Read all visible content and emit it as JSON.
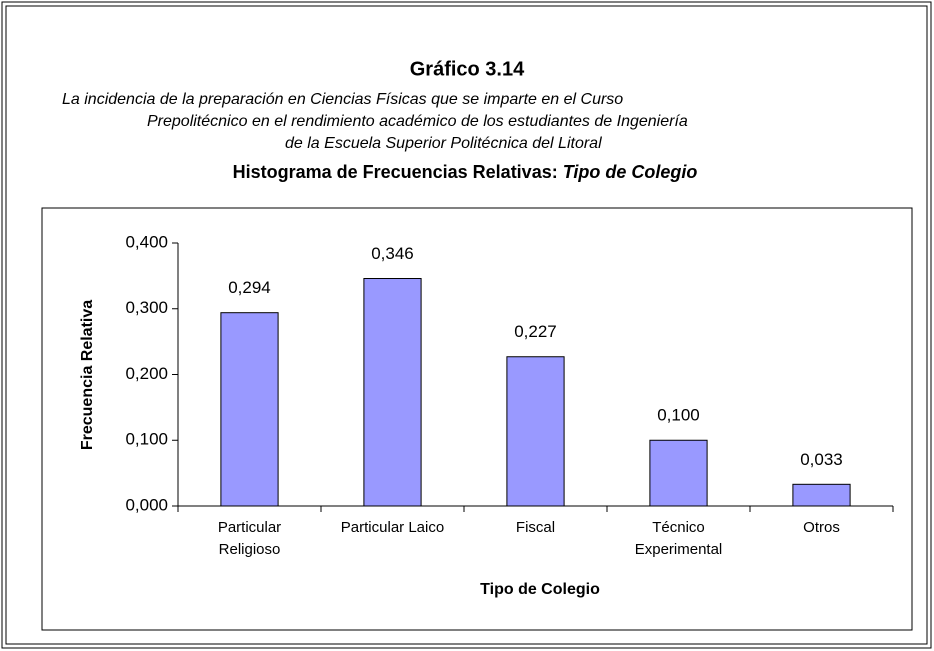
{
  "chart_data": {
    "type": "bar",
    "figure_label": "Gráfico   3.14",
    "subtitle": [
      "La incidencia de la preparación en Ciencias Físicas que se imparte en el Curso",
      "Prepolitécnico en el rendimiento académico de los estudiantes de Ingeniería",
      "de la Escuela Superior Politécnica del Litoral"
    ],
    "title": "Histograma de Frecuencias Relativas:",
    "title_emphasis": "Tipo de Colegio",
    "x_label": "Tipo de Colegio",
    "y_label": "Frecuencia Relativa",
    "categories": [
      [
        "Particular",
        "Religioso"
      ],
      [
        "Particular Laico"
      ],
      [
        "Fiscal"
      ],
      [
        "Técnico",
        "Experimental"
      ],
      [
        "Otros"
      ]
    ],
    "values": [
      0.294,
      0.346,
      0.227,
      0.1,
      0.033
    ],
    "value_labels": [
      "0,294",
      "0,346",
      "0,227",
      "0,100",
      "0,033"
    ],
    "color": "#9999ff",
    "ylim": [
      0,
      0.4
    ],
    "yticks": [
      {
        "value": 0,
        "label": "0,000"
      },
      {
        "value": 0.1,
        "label": "0,100"
      },
      {
        "value": 0.2,
        "label": "0,200"
      },
      {
        "value": 0.3,
        "label": "0,300"
      },
      {
        "value": 0.4,
        "label": "0,400"
      }
    ]
  }
}
